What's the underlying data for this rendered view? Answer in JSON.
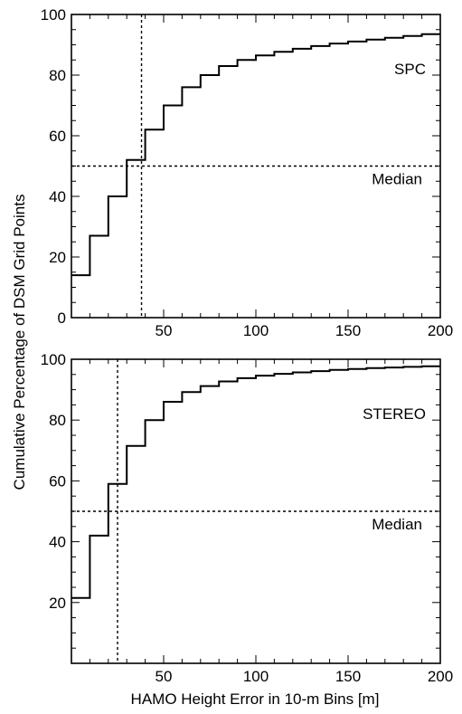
{
  "figure": {
    "ylabel": "Cumulative Percentage of DSM Grid Points",
    "xlabel": "HAMO Height Error in 10-m Bins [m]"
  },
  "chart_data": [
    {
      "type": "line",
      "step": true,
      "panel_label": "SPC",
      "median_label": "Median",
      "median_y": 50,
      "median_x": 38,
      "bin_edges": [
        0,
        10,
        20,
        30,
        40,
        50,
        60,
        70,
        80,
        90,
        100,
        110,
        120,
        130,
        140,
        150,
        160,
        170,
        180,
        190,
        200
      ],
      "values": [
        14,
        27,
        40,
        52,
        62,
        70,
        76,
        80,
        83,
        85,
        86.5,
        87.7,
        88.7,
        89.6,
        90.4,
        91.1,
        91.7,
        92.3,
        92.9,
        93.5
      ],
      "xlim": [
        0,
        200
      ],
      "ylim": [
        0,
        100
      ],
      "xticks": [
        50,
        100,
        150,
        200
      ],
      "yticks": [
        0,
        20,
        40,
        60,
        80,
        100
      ],
      "grid": false
    },
    {
      "type": "line",
      "step": true,
      "panel_label": "STEREO",
      "median_label": "Median",
      "median_y": 50,
      "median_x": 25,
      "bin_edges": [
        0,
        10,
        20,
        30,
        40,
        50,
        60,
        70,
        80,
        90,
        100,
        110,
        120,
        130,
        140,
        150,
        160,
        170,
        180,
        190,
        200
      ],
      "values": [
        21.5,
        42,
        59,
        71.5,
        80,
        86,
        89.2,
        91.2,
        92.7,
        93.8,
        94.6,
        95.2,
        95.7,
        96.1,
        96.5,
        96.8,
        97.1,
        97.3,
        97.5,
        97.7
      ],
      "xlim": [
        0,
        200
      ],
      "ylim": [
        0,
        100
      ],
      "xticks": [
        50,
        100,
        150,
        200
      ],
      "yticks": [
        20,
        40,
        60,
        80,
        100
      ],
      "grid": false
    }
  ]
}
